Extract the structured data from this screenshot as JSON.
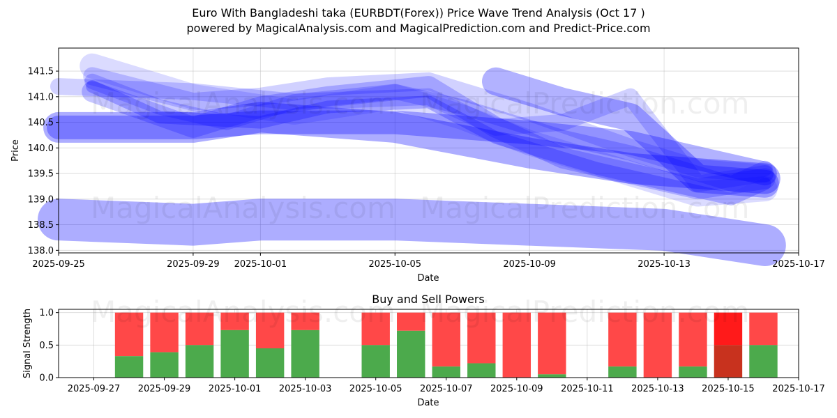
{
  "header": {
    "title": "Euro With Bangladeshi taka (EURBDT(Forex)) Price Wave Trend Analysis (Oct 17 )",
    "subtitle": "powered by MagicalAnalysis.com and MagicalPrediction.com and Predict-Price.com"
  },
  "watermarks": [
    "MagicalAnalysis.com",
    "MagicalPrediction.com"
  ],
  "colors": {
    "wave": "#0000ff",
    "buy": "#4caa4c",
    "sell": "#ff4848",
    "sell_strong": "#ff1a1a",
    "buy_dark": "#c8321e"
  },
  "chart_data": [
    {
      "type": "area",
      "title": "",
      "xlabel": "Date",
      "ylabel": "Price",
      "x_ticks": [
        "2025-09-25",
        "2025-09-29",
        "2025-10-01",
        "2025-10-05",
        "2025-10-09",
        "2025-10-13",
        "2025-10-17"
      ],
      "y_ticks": [
        "138.0",
        "138.5",
        "139.0",
        "139.5",
        "140.0",
        "140.5",
        "141.0",
        "141.5"
      ],
      "xlim": [
        "2025-09-25",
        "2025-10-17"
      ],
      "ylim": [
        137.95,
        141.95
      ],
      "grid": true,
      "series": [
        {
          "x": [
            "2025-09-26",
            "2025-09-29",
            "2025-10-01",
            "2025-10-03",
            "2025-10-06",
            "2025-10-09",
            "2025-10-12",
            "2025-10-14",
            "2025-10-16"
          ],
          "values": [
            141.4,
            140.9,
            141.0,
            141.2,
            141.3,
            140.7,
            140.0,
            139.6,
            139.5
          ]
        },
        {
          "x": [
            "2025-09-26",
            "2025-09-28",
            "2025-09-30",
            "2025-10-02",
            "2025-10-05",
            "2025-10-07",
            "2025-10-10",
            "2025-10-12",
            "2025-10-15",
            "2025-10-16"
          ],
          "values": [
            141.3,
            140.8,
            140.5,
            140.9,
            141.1,
            140.8,
            140.2,
            139.9,
            139.3,
            139.6
          ]
        },
        {
          "x": [
            "2025-09-26",
            "2025-09-29",
            "2025-10-01",
            "2025-10-03",
            "2025-10-06",
            "2025-10-08",
            "2025-10-10",
            "2025-10-12",
            "2025-10-14",
            "2025-10-16"
          ],
          "values": [
            141.1,
            140.4,
            140.8,
            141.0,
            141.2,
            140.4,
            139.8,
            139.5,
            139.2,
            139.4
          ]
        },
        {
          "x": [
            "2025-09-26",
            "2025-09-28",
            "2025-10-01",
            "2025-10-03",
            "2025-10-06",
            "2025-10-08",
            "2025-10-11",
            "2025-10-13",
            "2025-10-15",
            "2025-10-16"
          ],
          "values": [
            141.2,
            140.6,
            140.5,
            140.8,
            140.9,
            140.2,
            139.6,
            139.3,
            139.0,
            139.3
          ]
        },
        {
          "x": [
            "2025-09-26",
            "2025-09-29",
            "2025-10-02",
            "2025-10-05",
            "2025-10-07",
            "2025-10-09",
            "2025-10-12",
            "2025-10-14",
            "2025-10-16"
          ],
          "values": [
            141.6,
            141.0,
            140.7,
            141.0,
            140.6,
            140.1,
            139.5,
            139.1,
            139.2
          ]
        },
        {
          "x": [
            "2025-09-25",
            "2025-09-29",
            "2025-10-01",
            "2025-10-05",
            "2025-10-09",
            "2025-10-12",
            "2025-10-16"
          ],
          "values": [
            140.4,
            140.4,
            140.5,
            140.5,
            140.3,
            140.1,
            139.5
          ]
        },
        {
          "x": [
            "2025-09-25",
            "2025-09-29",
            "2025-10-01",
            "2025-10-05",
            "2025-10-09",
            "2025-10-12",
            "2025-10-16"
          ],
          "values": [
            140.4,
            140.4,
            140.6,
            140.4,
            139.9,
            139.6,
            139.4
          ]
        },
        {
          "x": [
            "2025-09-25",
            "2025-09-29",
            "2025-10-01",
            "2025-10-05",
            "2025-10-09",
            "2025-10-13",
            "2025-10-16"
          ],
          "values": [
            138.6,
            138.5,
            138.6,
            138.6,
            138.5,
            138.4,
            138.1
          ]
        },
        {
          "x": [
            "2025-10-08",
            "2025-10-10",
            "2025-10-12",
            "2025-10-14",
            "2025-10-16"
          ],
          "values": [
            141.3,
            140.9,
            140.6,
            139.4,
            139.3
          ]
        },
        {
          "x": [
            "2025-09-25",
            "2025-09-29",
            "2025-10-02",
            "2025-10-06",
            "2025-10-08",
            "2025-10-10",
            "2025-10-12",
            "2025-10-14",
            "2025-10-16"
          ],
          "values": [
            141.2,
            141.1,
            140.9,
            141.0,
            140.4,
            140.5,
            141.0,
            139.3,
            139.5
          ]
        }
      ]
    },
    {
      "type": "bar",
      "title": "Buy and Sell Powers",
      "xlabel": "Date",
      "ylabel": "Signal Strength",
      "x_ticks": [
        "2025-09-27",
        "2025-09-29",
        "2025-10-01",
        "2025-10-03",
        "2025-10-05",
        "2025-10-07",
        "2025-10-09",
        "2025-10-11",
        "2025-10-13",
        "2025-10-15",
        "2025-10-17"
      ],
      "y_ticks": [
        "0.0",
        "0.5",
        "1.0"
      ],
      "xlim": [
        "2025-09-26",
        "2025-10-17"
      ],
      "ylim": [
        0,
        1.05
      ],
      "grid": true,
      "categories": [
        "2025-09-28",
        "2025-09-29",
        "2025-09-30",
        "2025-10-01",
        "2025-10-02",
        "2025-10-03",
        "2025-10-05",
        "2025-10-06",
        "2025-10-07",
        "2025-10-08",
        "2025-10-09",
        "2025-10-10",
        "2025-10-12",
        "2025-10-13",
        "2025-10-14",
        "2025-10-15",
        "2025-10-16"
      ],
      "series": [
        {
          "name": "Buy",
          "values": [
            0.33,
            0.39,
            0.5,
            0.73,
            0.45,
            0.73,
            0.5,
            0.72,
            0.17,
            0.22,
            0.0,
            0.05,
            0.17,
            0.0,
            0.17,
            0.5,
            0.5
          ]
        },
        {
          "name": "Sell",
          "values": [
            0.67,
            0.61,
            0.5,
            0.27,
            0.55,
            0.27,
            0.5,
            0.28,
            0.83,
            0.78,
            1.0,
            0.95,
            0.83,
            1.0,
            0.83,
            0.5,
            0.5
          ]
        }
      ],
      "highlight": "2025-10-15"
    }
  ]
}
